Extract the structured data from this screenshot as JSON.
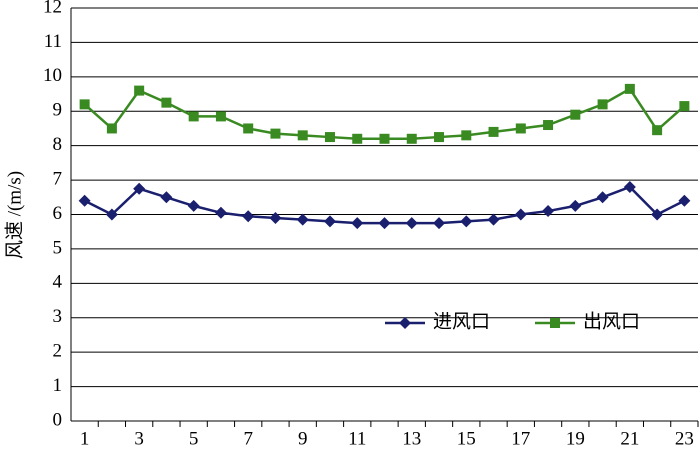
{
  "chart_data": {
    "type": "line",
    "y_label": "风速 /(m/s)",
    "categories": [
      "1",
      null,
      "3",
      null,
      "5",
      null,
      "7",
      null,
      "9",
      null,
      "11",
      null,
      "13",
      null,
      "15",
      null,
      "17",
      null,
      "19",
      null,
      "21",
      null,
      "23"
    ],
    "series": [
      {
        "name": "进风口",
        "color": "#1a1f6e",
        "marker": "diamond",
        "values": [
          6.4,
          6.0,
          6.75,
          6.5,
          6.25,
          6.05,
          5.95,
          5.9,
          5.85,
          5.8,
          5.75,
          5.75,
          5.75,
          5.75,
          5.8,
          5.85,
          6.0,
          6.1,
          6.25,
          6.5,
          6.8,
          6.0,
          6.4
        ]
      },
      {
        "name": "出风口",
        "color": "#3a8a22",
        "marker": "square",
        "values": [
          9.2,
          8.5,
          9.6,
          9.25,
          8.85,
          8.85,
          8.5,
          8.35,
          8.3,
          8.25,
          8.2,
          8.2,
          8.2,
          8.25,
          8.3,
          8.4,
          8.5,
          8.6,
          8.9,
          9.2,
          9.65,
          8.45,
          9.15
        ]
      }
    ],
    "ylim": [
      0,
      12
    ],
    "yticks": [
      0,
      1,
      2,
      3,
      4,
      5,
      6,
      7,
      8,
      9,
      10,
      11,
      12
    ],
    "grid": true,
    "legend": "lower-right"
  }
}
